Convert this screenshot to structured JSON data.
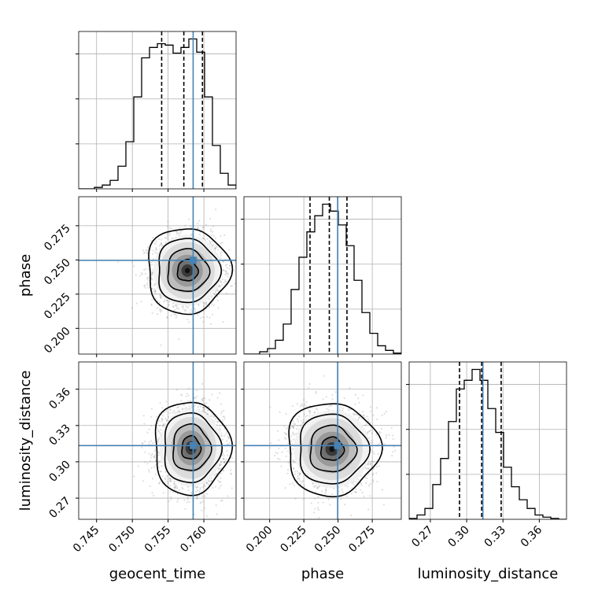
{
  "chart_data": {
    "type": "corner",
    "parameters": [
      {
        "key": "geocent_time",
        "label": "geocent_time",
        "range": [
          0.7425,
          0.7645
        ],
        "ticks": [
          0.745,
          0.75,
          0.755,
          0.76
        ],
        "tick_labels": [
          "0.745",
          "0.750",
          "0.755",
          "0.760"
        ],
        "truth": 0.7585,
        "quantiles": [
          0.7541,
          0.7572,
          0.7598
        ],
        "hist_edges": [
          0.7425,
          0.7436,
          0.7447,
          0.7458,
          0.7469,
          0.748,
          0.7491,
          0.7502,
          0.7513,
          0.7524,
          0.7535,
          0.7546,
          0.7557,
          0.7568,
          0.7579,
          0.759,
          0.7601,
          0.7612,
          0.7623,
          0.7634,
          0.7645
        ],
        "hist_counts": [
          0,
          0,
          3,
          8,
          18,
          48,
          100,
          195,
          278,
          300,
          308,
          305,
          288,
          300,
          318,
          290,
          195,
          92,
          33,
          8
        ]
      },
      {
        "key": "phase",
        "label": "phase",
        "range": [
          0.1812,
          0.2962
        ],
        "ticks": [
          0.2,
          0.225,
          0.25,
          0.275
        ],
        "tick_labels": [
          "0.200",
          "0.225",
          "0.250",
          "0.275"
        ],
        "truth": 0.2497,
        "quantiles": [
          0.2295,
          0.2436,
          0.2565
        ],
        "hist_edges": [
          0.1812,
          0.18695,
          0.1927,
          0.19845,
          0.2042,
          0.20995,
          0.2157,
          0.22145,
          0.2272,
          0.23295,
          0.2387,
          0.24445,
          0.2502,
          0.25595,
          0.2617,
          0.26745,
          0.2732,
          0.27895,
          0.2847,
          0.29045,
          0.2962
        ],
        "hist_counts": [
          0,
          0,
          5,
          12,
          30,
          65,
          140,
          210,
          265,
          300,
          325,
          310,
          280,
          235,
          160,
          90,
          45,
          18,
          8,
          2
        ]
      },
      {
        "key": "luminosity_distance",
        "label": "luminosity_distance",
        "range": [
          0.2525,
          0.3825
        ],
        "ticks": [
          0.27,
          0.3,
          0.33,
          0.36
        ],
        "tick_labels": [
          "0.27",
          "0.30",
          "0.33",
          "0.36"
        ],
        "truth": 0.3134,
        "quantiles": [
          0.2941,
          0.3124,
          0.3285
        ],
        "hist_edges": [
          0.2525,
          0.259,
          0.2655,
          0.272,
          0.2785,
          0.285,
          0.2915,
          0.298,
          0.3045,
          0.311,
          0.3175,
          0.324,
          0.3305,
          0.337,
          0.3435,
          0.35,
          0.3565,
          0.363,
          0.3695,
          0.376,
          0.3825
        ],
        "hist_counts": [
          2,
          10,
          25,
          80,
          140,
          225,
          300,
          320,
          345,
          320,
          255,
          200,
          120,
          75,
          45,
          25,
          10,
          5,
          2,
          0
        ]
      }
    ],
    "pairs": [
      {
        "x": "geocent_time",
        "y": "phase",
        "mean": [
          0.7577,
          0.2422
        ],
        "sd": [
          0.0024,
          0.013
        ],
        "corr": 0.0
      },
      {
        "x": "geocent_time",
        "y": "luminosity_distance",
        "mean": [
          0.7582,
          0.3115
        ],
        "sd": [
          0.0022,
          0.016
        ],
        "corr": 0.0
      },
      {
        "x": "phase",
        "y": "luminosity_distance",
        "mean": [
          0.2456,
          0.3105
        ],
        "sd": [
          0.014,
          0.016
        ],
        "corr": 0.0
      }
    ],
    "colors": {
      "truth": "#4682b4",
      "hist": "#000000",
      "quantile": "#000000",
      "grid": "#b0b0b0",
      "scatter": "#7f7f7f"
    }
  }
}
